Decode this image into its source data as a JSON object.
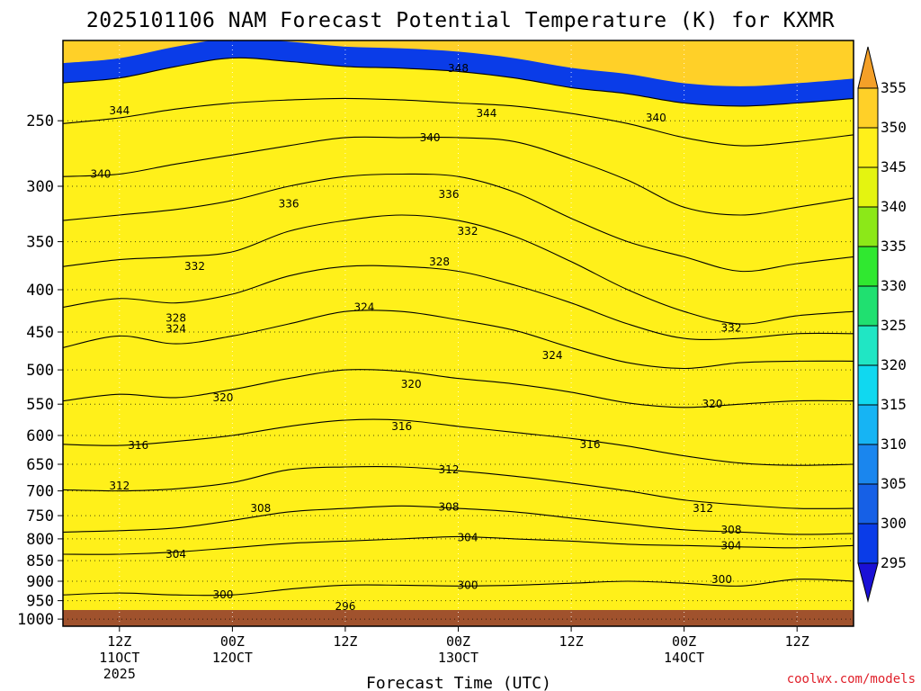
{
  "chart_data": {
    "type": "heatmap",
    "title": "2025101106 NAM Forecast Potential Temperature (K) for KXMR",
    "xlabel": "Forecast Time (UTC)",
    "ylabel": "",
    "credit": "coolwx.com/models",
    "y_levels": [
      250,
      300,
      350,
      400,
      450,
      500,
      550,
      600,
      650,
      700,
      750,
      800,
      850,
      900,
      950,
      1000
    ],
    "y_level_labels": [
      "250",
      "300",
      "350",
      "400",
      "450",
      "500",
      "550",
      "600",
      "650",
      "700",
      "750",
      "800",
      "850",
      "900",
      "950",
      "1000"
    ],
    "ylim": [
      1020,
      200
    ],
    "x_ticks": [
      {
        "hour": 6,
        "line1": "12Z",
        "line2": "11OCT",
        "line3": "2025"
      },
      {
        "hour": 18,
        "line1": "00Z",
        "line2": "12OCT",
        "line3": ""
      },
      {
        "hour": 30,
        "line1": "12Z",
        "line2": "",
        "line3": ""
      },
      {
        "hour": 42,
        "line1": "00Z",
        "line2": "13OCT",
        "line3": ""
      },
      {
        "hour": 54,
        "line1": "12Z",
        "line2": "",
        "line3": ""
      },
      {
        "hour": 66,
        "line1": "00Z",
        "line2": "14OCT",
        "line3": ""
      },
      {
        "hour": 78,
        "line1": "12Z",
        "line2": "",
        "line3": ""
      }
    ],
    "xlim": [
      0,
      84
    ],
    "colorbar": {
      "levels": [
        295,
        300,
        305,
        310,
        315,
        320,
        325,
        330,
        335,
        340,
        345,
        350,
        355
      ],
      "tick_labels": [
        "295",
        "300",
        "305",
        "310",
        "315",
        "320",
        "325",
        "330",
        "335",
        "340",
        "345",
        "350",
        "355"
      ],
      "colors": [
        "#1a10d6",
        "#0a3ce8",
        "#1660e6",
        "#1a86ee",
        "#16b4f4",
        "#10d8f0",
        "#20e6c4",
        "#20e070",
        "#30e830",
        "#8ce818",
        "#e4f410",
        "#fff01a",
        "#ffd028",
        "#f4a028"
      ]
    },
    "contours": [
      {
        "theta": 296,
        "p": [
          null,
          null,
          null,
          null,
          null,
          null,
          null,
          null,
          null,
          null,
          null,
          null,
          null,
          null,
          null
        ]
      },
      {
        "theta": 300,
        "p": [
          935,
          930,
          935,
          935,
          920,
          910,
          910,
          912,
          910,
          905,
          900,
          905,
          912,
          895,
          900
        ]
      },
      {
        "theta": 304,
        "p": [
          835,
          835,
          830,
          820,
          810,
          805,
          800,
          795,
          800,
          805,
          812,
          815,
          818,
          820,
          815
        ]
      },
      {
        "theta": 308,
        "p": [
          785,
          782,
          776,
          760,
          742,
          735,
          730,
          735,
          742,
          755,
          768,
          780,
          785,
          790,
          788
        ]
      },
      {
        "theta": 312,
        "p": [
          698,
          700,
          696,
          684,
          660,
          655,
          655,
          662,
          672,
          685,
          700,
          718,
          728,
          735,
          735
        ]
      },
      {
        "theta": 316,
        "p": [
          615,
          617,
          610,
          600,
          585,
          575,
          575,
          585,
          595,
          605,
          618,
          635,
          648,
          652,
          650
        ]
      },
      {
        "theta": 320,
        "p": [
          545,
          535,
          540,
          528,
          512,
          500,
          502,
          512,
          520,
          532,
          548,
          555,
          550,
          545,
          545
        ]
      },
      {
        "theta": 324,
        "p": [
          470,
          455,
          465,
          455,
          440,
          425,
          425,
          435,
          448,
          470,
          490,
          498,
          490,
          488,
          488
        ]
      },
      {
        "theta": 328,
        "p": [
          420,
          410,
          415,
          405,
          385,
          375,
          375,
          380,
          395,
          415,
          440,
          458,
          458,
          452,
          452
        ]
      },
      {
        "theta": 332,
        "p": [
          375,
          368,
          365,
          360,
          340,
          330,
          325,
          330,
          345,
          370,
          400,
          425,
          440,
          430,
          425
        ]
      },
      {
        "theta": 336,
        "p": [
          330,
          325,
          320,
          312,
          300,
          292,
          290,
          292,
          305,
          328,
          350,
          365,
          380,
          372,
          365
        ]
      },
      {
        "theta": 340,
        "p": [
          292,
          290,
          282,
          275,
          268,
          262,
          262,
          262,
          265,
          278,
          295,
          318,
          325,
          318,
          310
        ]
      },
      {
        "theta": 344,
        "p": [
          252,
          248,
          242,
          238,
          236,
          235,
          236,
          238,
          240,
          245,
          252,
          262,
          268,
          265,
          260
        ]
      },
      {
        "theta": 348,
        "p": [
          225,
          222,
          215,
          210,
          212,
          215,
          216,
          218,
          222,
          228,
          232,
          238,
          240,
          238,
          235
        ]
      }
    ],
    "labels": [
      {
        "text": "348",
        "hour": 42,
        "p": 216
      },
      {
        "text": "344",
        "hour": 6,
        "p": 243
      },
      {
        "text": "344",
        "hour": 45,
        "p": 245
      },
      {
        "text": "340",
        "hour": 63,
        "p": 248
      },
      {
        "text": "340",
        "hour": 4,
        "p": 290
      },
      {
        "text": "340",
        "hour": 39,
        "p": 262
      },
      {
        "text": "336",
        "hour": 24,
        "p": 315
      },
      {
        "text": "336",
        "hour": 41,
        "p": 307
      },
      {
        "text": "332",
        "hour": 14,
        "p": 375
      },
      {
        "text": "332",
        "hour": 43,
        "p": 340
      },
      {
        "text": "332",
        "hour": 71,
        "p": 445
      },
      {
        "text": "328",
        "hour": 12,
        "p": 433
      },
      {
        "text": "328",
        "hour": 40,
        "p": 370
      },
      {
        "text": "324",
        "hour": 12,
        "p": 446
      },
      {
        "text": "324",
        "hour": 32,
        "p": 420
      },
      {
        "text": "324",
        "hour": 52,
        "p": 480
      },
      {
        "text": "320",
        "hour": 17,
        "p": 540
      },
      {
        "text": "320",
        "hour": 37,
        "p": 520
      },
      {
        "text": "320",
        "hour": 69,
        "p": 550
      },
      {
        "text": "316",
        "hour": 36,
        "p": 585
      },
      {
        "text": "316",
        "hour": 8,
        "p": 617
      },
      {
        "text": "316",
        "hour": 56,
        "p": 615
      },
      {
        "text": "312",
        "hour": 6,
        "p": 690
      },
      {
        "text": "312",
        "hour": 41,
        "p": 660
      },
      {
        "text": "312",
        "hour": 68,
        "p": 735
      },
      {
        "text": "308",
        "hour": 21,
        "p": 735
      },
      {
        "text": "308",
        "hour": 41,
        "p": 732
      },
      {
        "text": "308",
        "hour": 71,
        "p": 780
      },
      {
        "text": "304",
        "hour": 12,
        "p": 835
      },
      {
        "text": "304",
        "hour": 43,
        "p": 797
      },
      {
        "text": "304",
        "hour": 71,
        "p": 815
      },
      {
        "text": "300",
        "hour": 17,
        "p": 935
      },
      {
        "text": "300",
        "hour": 43,
        "p": 910
      },
      {
        "text": "300",
        "hour": 70,
        "p": 895
      },
      {
        "text": "296",
        "hour": 30,
        "p": 965
      }
    ]
  }
}
